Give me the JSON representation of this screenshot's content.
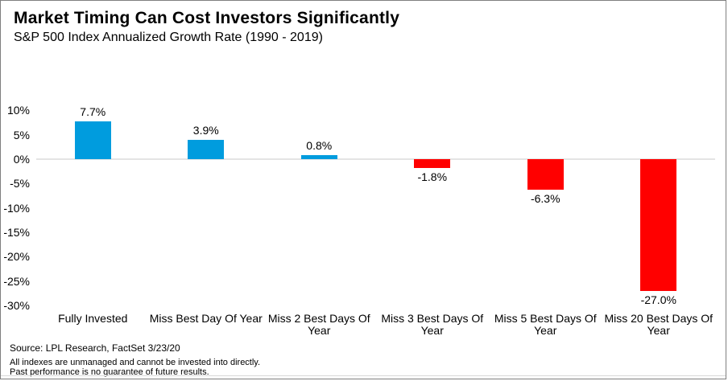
{
  "header": {
    "title": "Market Timing Can Cost Investors Significantly",
    "subtitle": "S&P 500 Index Annualized Growth Rate (1990 - 2019)"
  },
  "footer": {
    "source": "Source: LPL Research, FactSet 3/23/20",
    "disclaimer_line1": "All indexes are unmanaged and cannot be invested into directly.",
    "disclaimer_line2": "Past performance is no guarantee of future results."
  },
  "colors": {
    "positive_bar": "#009CDE",
    "negative_bar": "#FF0000",
    "zero_line": "#E4E4E4",
    "frame_border": "#7F7F7F",
    "footer_rule": "#D9D9D9",
    "text": "#000000"
  },
  "chart_data": {
    "type": "bar",
    "title": "Market Timing Can Cost Investors Significantly",
    "subtitle": "S&P 500 Index Annualized Growth Rate (1990 - 2019)",
    "categories": [
      "Fully Invested",
      "Miss Best Day Of Year",
      "Miss 2 Best Days Of Year",
      "Miss 3 Best Days Of Year",
      "Miss 5 Best Days Of Year",
      "Miss 20 Best Days Of Year"
    ],
    "category_lines": [
      [
        "Fully Invested"
      ],
      [
        "Miss Best Day Of Year"
      ],
      [
        "Miss 2 Best Days Of",
        "Year"
      ],
      [
        "Miss 3 Best Days Of",
        "Year"
      ],
      [
        "Miss 5 Best Days Of",
        "Year"
      ],
      [
        "Miss 20 Best Days Of",
        "Year"
      ]
    ],
    "values": [
      7.7,
      3.9,
      0.8,
      -1.8,
      -6.3,
      -27.0
    ],
    "value_labels": [
      "7.7%",
      "3.9%",
      "0.8%",
      "-1.8%",
      "-6.3%",
      "-27.0%"
    ],
    "xlabel": "",
    "ylabel": "",
    "ylim": [
      -30,
      10
    ],
    "ytick_values": [
      10,
      5,
      0,
      -5,
      -10,
      -15,
      -20,
      -25,
      -30
    ],
    "ytick_labels": [
      "10%",
      "5%",
      "0%",
      "-5%",
      "-10%",
      "-15%",
      "-20%",
      "-25%",
      "-30%"
    ],
    "grid": "horizontal axis line at 0% only",
    "legend": "none",
    "bar_color_rule": "positive bars blue, negative bars red"
  }
}
